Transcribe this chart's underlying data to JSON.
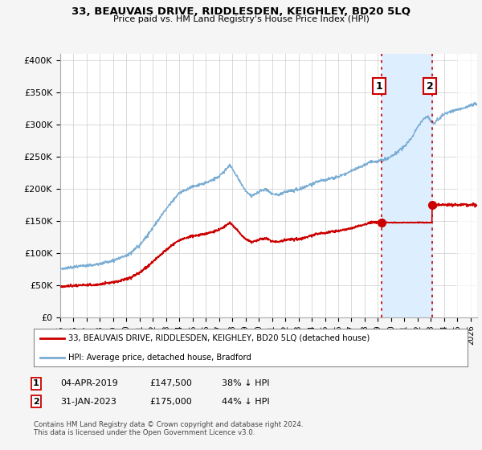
{
  "title": "33, BEAUVAIS DRIVE, RIDDLESDEN, KEIGHLEY, BD20 5LQ",
  "subtitle": "Price paid vs. HM Land Registry's House Price Index (HPI)",
  "ylabel_ticks": [
    "£0",
    "£50K",
    "£100K",
    "£150K",
    "£200K",
    "£250K",
    "£300K",
    "£350K",
    "£400K"
  ],
  "ytick_values": [
    0,
    50000,
    100000,
    150000,
    200000,
    250000,
    300000,
    350000,
    400000
  ],
  "ylim": [
    0,
    410000
  ],
  "xlim_start": 1995.0,
  "xlim_end": 2026.5,
  "sale1_date": 2019.25,
  "sale1_price": 147500,
  "sale2_date": 2023.08,
  "sale2_price": 175000,
  "legend_line1": "33, BEAUVAIS DRIVE, RIDDLESDEN, KEIGHLEY, BD20 5LQ (detached house)",
  "legend_line2": "HPI: Average price, detached house, Bradford",
  "footnote": "Contains HM Land Registry data © Crown copyright and database right 2024.\nThis data is licensed under the Open Government Licence v3.0.",
  "line_color_red": "#cc0000",
  "line_color_blue": "#7aadd4",
  "shade_color": "#ddeeff",
  "background_color": "#f5f5f5",
  "plot_bg": "#ffffff",
  "grid_color": "#cccccc"
}
